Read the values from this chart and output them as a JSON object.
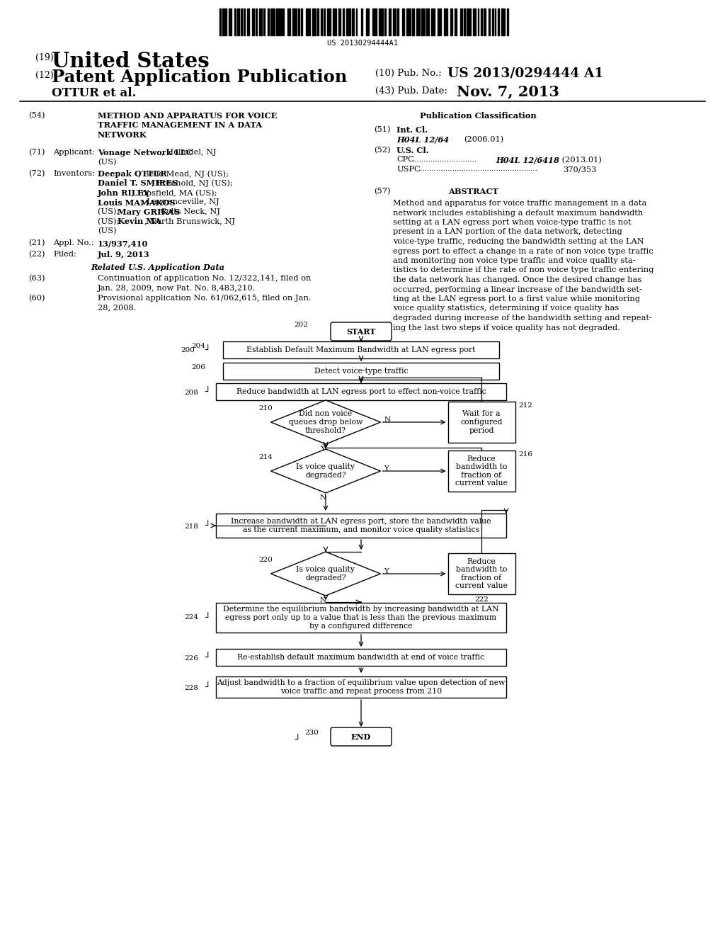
{
  "bg_color": "#ffffff",
  "barcode_text": "US 20130294444A1",
  "num19": "(19)",
  "title_us": "United States",
  "num12": "(12)",
  "title_patent": "Patent Application Publication",
  "inventor_label": "OTTUR et al.",
  "pub_no_label": "(10) Pub. No.:",
  "pub_no": "US 2013/0294444 A1",
  "pub_date_label": "(43) Pub. Date:",
  "pub_date": "Nov. 7, 2013",
  "s54_num": "(54)",
  "s54_title_line1": "METHOD AND APPARATUS FOR VOICE",
  "s54_title_line2": "TRAFFIC MANAGEMENT IN A DATA",
  "s54_title_line3": "NETWORK",
  "s71_num": "(71)",
  "s71_label": "Applicant:",
  "s71_name": "Vonage Network LLC",
  "s71_addr": ", Holmdel, NJ",
  "s71_country": "(US)",
  "s72_num": "(72)",
  "s72_label": "Inventors:",
  "s72_lines": [
    [
      [
        "Deepak OTTUR",
        true
      ],
      [
        ", Belle Mead, NJ (US);",
        false
      ]
    ],
    [
      [
        "Daniel T. SMIRES",
        true
      ],
      [
        ", Freehold, NJ (US);",
        false
      ]
    ],
    [
      [
        "John RILEY",
        true
      ],
      [
        ", Topsfield, MA (US);",
        false
      ]
    ],
    [
      [
        "Louis MAMAKOS",
        true
      ],
      [
        ", Lawrenceville, NJ",
        false
      ]
    ],
    [
      [
        "(US); ",
        false
      ],
      [
        "Mary GRIKAS",
        true
      ],
      [
        ", Colts Neck, NJ",
        false
      ]
    ],
    [
      [
        "(US); ",
        false
      ],
      [
        "Kevin MA",
        true
      ],
      [
        ", North Brunswick, NJ",
        false
      ]
    ],
    [
      [
        "(US)",
        false
      ]
    ]
  ],
  "s21_num": "(21)",
  "s21_label": "Appl. No.:",
  "s21_text": "13/937,410",
  "s22_num": "(22)",
  "s22_label": "Filed:",
  "s22_text": "Jul. 9, 2013",
  "related_title": "Related U.S. Application Data",
  "s63_num": "(63)",
  "s63_line1": "Continuation of application No. 12/322,141, filed on",
  "s63_line2": "Jan. 28, 2009, now Pat. No. 8,483,210.",
  "s60_num": "(60)",
  "s60_line1": "Provisional application No. 61/062,615, filed on Jan.",
  "s60_line2": "28, 2008.",
  "pub_class_title": "Publication Classification",
  "s51_num": "(51)",
  "s51_label": "Int. Cl.",
  "s51_class": "H04L 12/64",
  "s51_year": "(2006.01)",
  "s52_num": "(52)",
  "s52_label": "U.S. Cl.",
  "s52_cpc": "CPC",
  "s52_cpc_dots": "............................",
  "s52_cpc_class": "H04L 12/6418",
  "s52_cpc_year": "(2013.01)",
  "s52_uspc": "USPC",
  "s52_uspc_dots": "....................................................",
  "s52_uspc_class": "370/353",
  "s57_num": "(57)",
  "abstract_title": "ABSTRACT",
  "abstract_lines": [
    "Method and apparatus for voice traffic management in a data",
    "network includes establishing a default maximum bandwidth",
    "setting at a LAN egress port when voice-type traffic is not",
    "present in a LAN portion of the data network, detecting",
    "voice-type traffic, reducing the bandwidth setting at the LAN",
    "egress port to effect a change in a rate of non voice type traffic",
    "and monitoring non voice type traffic and voice quality sta-",
    "tistics to determine if the rate of non voice type traffic entering",
    "the data network has changed. Once the desired change has",
    "occurred, performing a linear increase of the bandwidth set-",
    "ting at the LAN egress port to a first value while monitoring",
    "voice quality statistics, determining if voice quality has",
    "degraded during increase of the bandwidth setting and repeat-",
    "ing the last two steps if voice quality has not degraded."
  ],
  "fc_start_text": "START",
  "fc_end_text": "END",
  "fc_204_text": "Establish Default Maximum Bandwidth at LAN egress port",
  "fc_206_text": "Detect voice-type traffic",
  "fc_208_text": "Reduce bandwidth at LAN egress port to effect non-voice traffic",
  "fc_210_text": "Did non voice\nqueues drop below\nthreshold?",
  "fc_212_text": "Wait for a\nconfigured\nperiod",
  "fc_214_text": "Is voice quality\ndegraded?",
  "fc_216_text": "Reduce\nbandwidth to\nfraction of\ncurrent value",
  "fc_218_text": "Increase bandwidth at LAN egress port, store the bandwidth value\nas the current maximum, and monitor voice quality statistics",
  "fc_220_text": "Is voice quality\ndegraded?",
  "fc_222_text": "Reduce\nbandwidth to\nfraction of\ncurrent value",
  "fc_224_text": "Determine the equilibrium bandwidth by increasing bandwidth at LAN\negress port only up to a value that is less than the previous maximum\nby a configured difference",
  "fc_226_text": "Re-establish default maximum bandwidth at end of voice traffic",
  "fc_228_text": "Adjust bandwidth to a fraction of equilibrium value upon detection of new\nvoice traffic and repeat process from 210"
}
